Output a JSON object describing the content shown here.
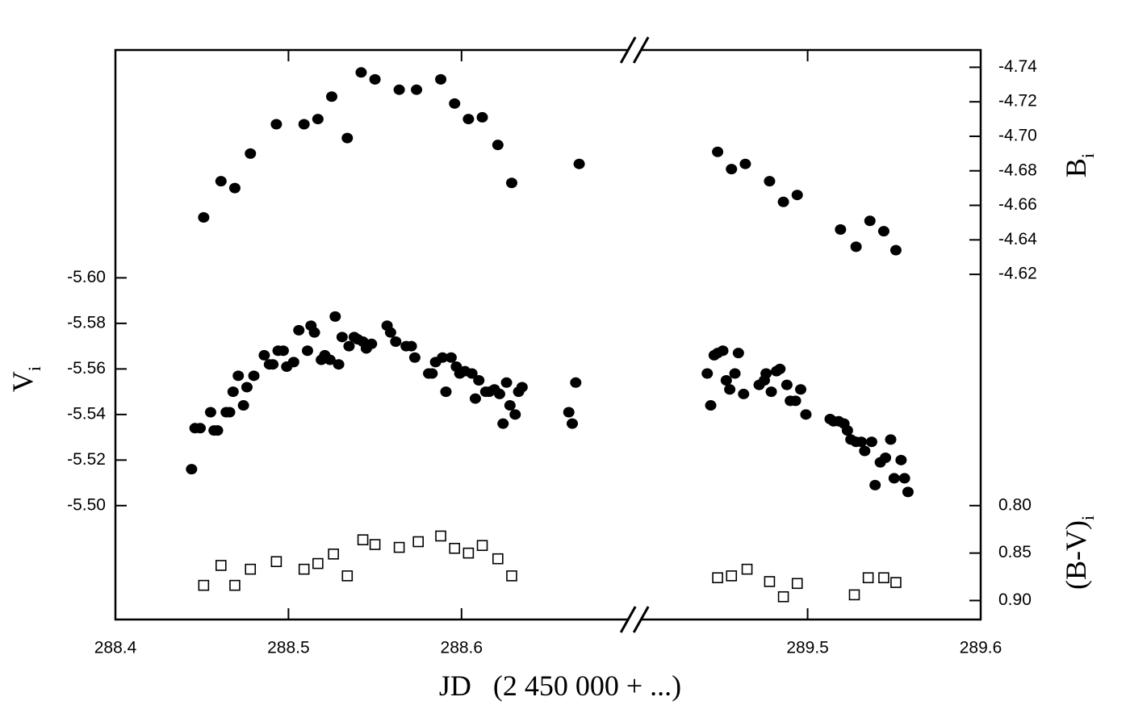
{
  "chart_data": {
    "type": "scatter",
    "xlabel": "JD   (2 450 000 + ...)",
    "ylabel": "V",
    "ylabel_sub": "i",
    "y2label": "B",
    "y2label_sub": "i",
    "y3label": "(B-V)",
    "y3label_sub": "i",
    "xlim": [
      288.4,
      289.6
    ],
    "x_break": [
      288.7,
      289.4
    ],
    "xticks": [
      288.4,
      288.5,
      288.6,
      289.5,
      289.6
    ],
    "y_inverted": true,
    "ylim": [
      -5.7,
      -5.45
    ],
    "yticks": [
      {
        "value": -5.6,
        "label": "-5.60"
      },
      -5.58,
      -5.56,
      -5.54,
      -5.52,
      {
        "value": -5.5,
        "label": "-5.50"
      }
    ],
    "y2lim": [
      -4.75,
      -4.42
    ],
    "y2ticks": [
      -4.74,
      -4.72,
      {
        "value": -4.7,
        "label": "-4.70"
      },
      -4.68,
      -4.66,
      -4.64,
      -4.62
    ],
    "y3lim": [
      0.32,
      0.92
    ],
    "y3ticks": [
      {
        "value": 0.8,
        "label": "0.80"
      },
      0.85,
      {
        "value": 0.9,
        "label": "0.90"
      }
    ],
    "series": [
      {
        "axis": "y2",
        "marker": "filled-circle",
        "color": "#000000",
        "x": [
          288.451,
          288.461,
          288.469,
          288.478,
          288.493,
          288.509,
          288.517,
          288.525,
          288.534,
          288.542,
          288.55,
          288.564,
          288.574,
          288.588,
          288.596,
          288.604,
          288.612,
          288.621,
          288.629,
          288.668,
          289.448,
          289.456,
          289.464,
          289.478,
          289.486,
          289.494,
          289.519,
          289.528,
          289.536,
          289.544,
          289.551
        ],
        "values": [
          -4.653,
          -4.674,
          -4.67,
          -4.69,
          -4.707,
          -4.707,
          -4.71,
          -4.723,
          -4.699,
          -4.737,
          -4.733,
          -4.727,
          -4.727,
          -4.733,
          -4.719,
          -4.71,
          -4.711,
          -4.695,
          -4.673,
          -4.684,
          -4.691,
          -4.681,
          -4.684,
          -4.674,
          -4.662,
          -4.666,
          -4.646,
          -4.636,
          -4.651,
          -4.645,
          -4.634
        ]
      },
      {
        "axis": "y",
        "marker": "filled-circle",
        "color": "#000000",
        "x": [
          288.444,
          288.446,
          288.449,
          288.455,
          288.457,
          288.459,
          288.464,
          288.466,
          288.468,
          288.471,
          288.474,
          288.476,
          288.48,
          288.486,
          288.489,
          288.491,
          288.494,
          288.497,
          288.499,
          288.503,
          288.506,
          288.511,
          288.513,
          288.515,
          288.519,
          288.521,
          288.524,
          288.527,
          288.529,
          288.531,
          288.535,
          288.538,
          288.54,
          288.543,
          288.545,
          288.548,
          288.557,
          288.559,
          288.562,
          288.568,
          288.571,
          288.573,
          288.581,
          288.583,
          288.585,
          288.589,
          288.591,
          288.594,
          288.597,
          288.599,
          288.602,
          288.606,
          288.61,
          288.608,
          288.614,
          288.616,
          288.619,
          288.622,
          288.624,
          288.626,
          288.628,
          288.631,
          288.633,
          288.635,
          288.662,
          288.664,
          288.666,
          289.442,
          289.444,
          289.446,
          289.448,
          289.451,
          289.453,
          289.455,
          289.458,
          289.46,
          289.463,
          289.472,
          289.475,
          289.476,
          289.479,
          289.482,
          289.484,
          289.488,
          289.49,
          289.493,
          289.496,
          289.499,
          289.513,
          289.515,
          289.518,
          289.521,
          289.523,
          289.525,
          289.528,
          289.531,
          289.533,
          289.537,
          289.539,
          289.542,
          289.545,
          289.548,
          289.55,
          289.554,
          289.556,
          289.558
        ],
        "values": [
          -5.516,
          -5.534,
          -5.534,
          -5.541,
          -5.533,
          -5.533,
          -5.541,
          -5.541,
          -5.55,
          -5.557,
          -5.544,
          -5.552,
          -5.557,
          -5.566,
          -5.562,
          -5.562,
          -5.568,
          -5.568,
          -5.561,
          -5.563,
          -5.577,
          -5.568,
          -5.579,
          -5.576,
          -5.564,
          -5.566,
          -5.564,
          -5.583,
          -5.562,
          -5.574,
          -5.57,
          -5.574,
          -5.573,
          -5.572,
          -5.569,
          -5.571,
          -5.579,
          -5.576,
          -5.572,
          -5.57,
          -5.57,
          -5.565,
          -5.558,
          -5.558,
          -5.563,
          -5.565,
          -5.55,
          -5.565,
          -5.561,
          -5.558,
          -5.559,
          -5.558,
          -5.555,
          -5.547,
          -5.55,
          -5.55,
          -5.551,
          -5.549,
          -5.536,
          -5.554,
          -5.544,
          -5.54,
          -5.55,
          -5.552,
          -5.541,
          -5.536,
          -5.554,
          -5.558,
          -5.544,
          -5.566,
          -5.567,
          -5.568,
          -5.555,
          -5.551,
          -5.558,
          -5.567,
          -5.549,
          -5.553,
          -5.555,
          -5.558,
          -5.55,
          -5.559,
          -5.56,
          -5.553,
          -5.546,
          -5.546,
          -5.551,
          -5.54,
          -5.538,
          -5.537,
          -5.537,
          -5.536,
          -5.533,
          -5.529,
          -5.528,
          -5.528,
          -5.524,
          -5.528,
          -5.509,
          -5.519,
          -5.521,
          -5.529,
          -5.512,
          -5.52,
          -5.512,
          -5.506
        ]
      },
      {
        "axis": "y3",
        "marker": "open-square",
        "color": "#000000",
        "x": [
          288.451,
          288.461,
          288.469,
          288.478,
          288.493,
          288.509,
          288.517,
          288.526,
          288.534,
          288.543,
          288.55,
          288.564,
          288.575,
          288.588,
          288.596,
          288.604,
          288.612,
          288.621,
          288.629,
          289.448,
          289.456,
          289.465,
          289.478,
          289.486,
          289.494,
          289.527,
          289.535,
          289.544,
          289.551
        ],
        "values": [
          0.884,
          0.863,
          0.884,
          0.867,
          0.859,
          0.867,
          0.861,
          0.851,
          0.874,
          0.836,
          0.841,
          0.844,
          0.838,
          0.832,
          0.845,
          0.85,
          0.842,
          0.856,
          0.874,
          0.876,
          0.874,
          0.867,
          0.88,
          0.896,
          0.882,
          0.894,
          0.876,
          0.876,
          0.881
        ]
      }
    ]
  }
}
